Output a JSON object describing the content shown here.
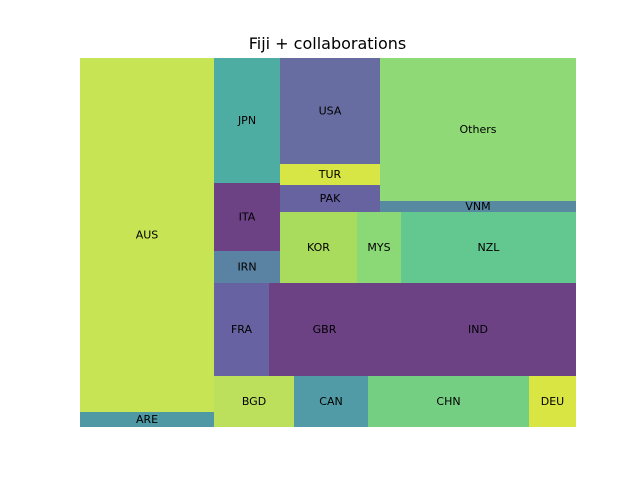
{
  "chart_data": {
    "type": "treemap",
    "title": "Fiji + collaborations",
    "cells": [
      {
        "label": "AUS",
        "color": "#c6e454"
      },
      {
        "label": "ARE",
        "color": "#4e99a4"
      },
      {
        "label": "JPN",
        "color": "#4eada3"
      },
      {
        "label": "ITA",
        "color": "#6d4284"
      },
      {
        "label": "IRN",
        "color": "#5a82a2"
      },
      {
        "label": "USA",
        "color": "#676da0"
      },
      {
        "label": "TUR",
        "color": "#d8e645"
      },
      {
        "label": "PAK",
        "color": "#6663a0"
      },
      {
        "label": "Others",
        "color": "#8fd977"
      },
      {
        "label": "VNM",
        "color": "#5789a1"
      },
      {
        "label": "KOR",
        "color": "#a9dc5d"
      },
      {
        "label": "MYS",
        "color": "#8bd877"
      },
      {
        "label": "NZL",
        "color": "#62c890"
      },
      {
        "label": "FRA",
        "color": "#6763a2"
      },
      {
        "label": "GBR",
        "color": "#6c4284"
      },
      {
        "label": "IND",
        "color": "#6c4284"
      },
      {
        "label": "BGD",
        "color": "#bde05c"
      },
      {
        "label": "CAN",
        "color": "#519ba6"
      },
      {
        "label": "CHN",
        "color": "#75cf83"
      },
      {
        "label": "DEU",
        "color": "#d9e543"
      }
    ]
  }
}
